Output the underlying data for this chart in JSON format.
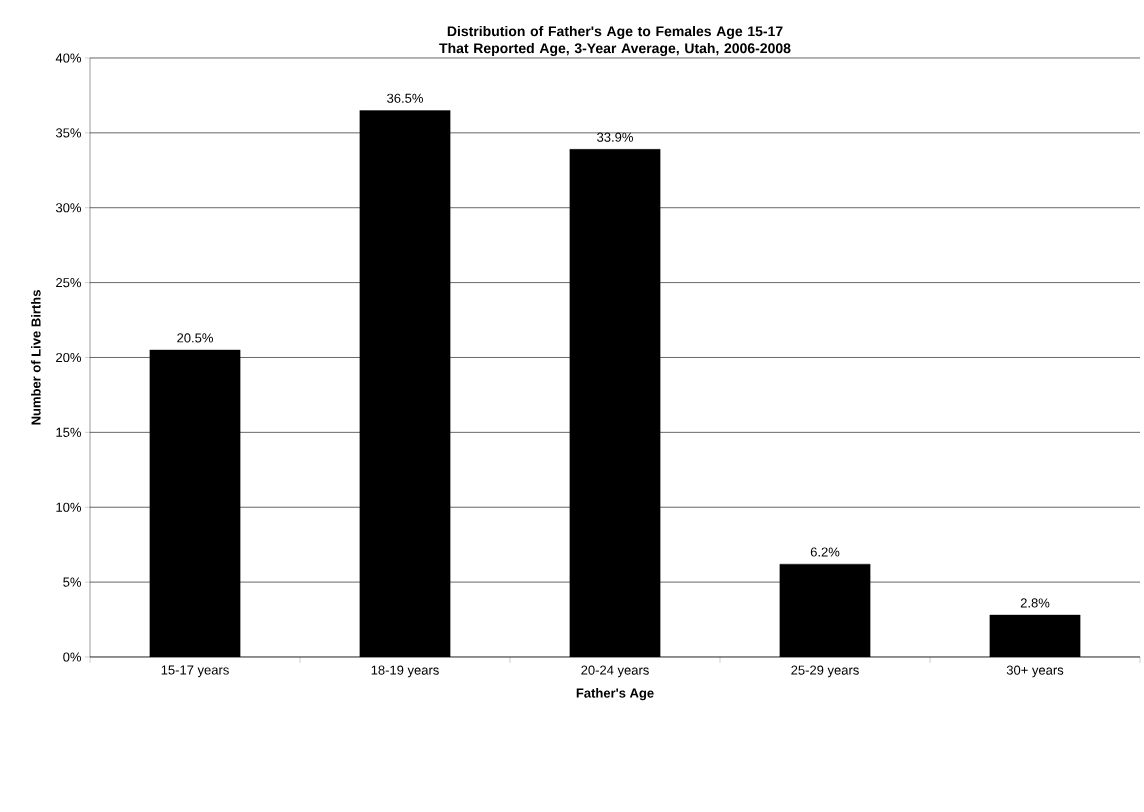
{
  "chart_data": {
    "type": "bar",
    "title": "Distribution of Father's Age to Females Age 15-17 That Reported Age, 3-Year Average, Utah, 2006-2008",
    "xlabel": "Father's Age",
    "ylabel": "Number of Live Births",
    "categories": [
      "15-17 years",
      "18-19 years",
      "20-24 years",
      "25-29 years",
      "30+ years"
    ],
    "values": [
      20.5,
      36.5,
      33.9,
      6.2,
      2.8
    ],
    "value_labels": [
      "20.5%",
      "36.5%",
      "33.9%",
      "6.2%",
      "2.8%"
    ],
    "color": "#000000",
    "ylim": [
      0,
      40
    ],
    "yticks": [
      {
        "value": 0,
        "label": "0%"
      },
      {
        "value": 5,
        "label": "5%"
      },
      {
        "value": 10,
        "label": "10%"
      },
      {
        "value": 15,
        "label": "15%"
      },
      {
        "value": 20,
        "label": "20%"
      },
      {
        "value": 25,
        "label": "25%"
      },
      {
        "value": 30,
        "label": "30%"
      },
      {
        "value": 35,
        "label": "35%"
      },
      {
        "value": 40,
        "label": "40%"
      }
    ],
    "grid": "y"
  }
}
